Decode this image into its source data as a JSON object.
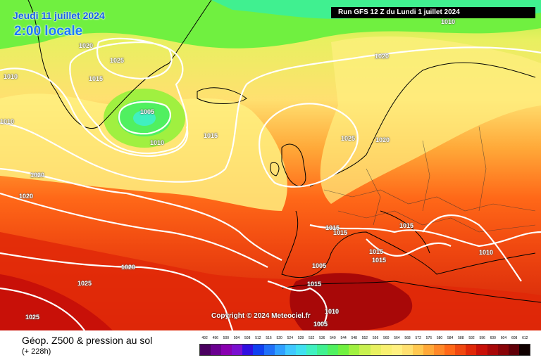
{
  "header": {
    "date": "Jeudi 11 juillet 2024",
    "local_time": "2:00 locale",
    "run": "Run GFS 12 Z du Lundi 1 juillet 2024"
  },
  "map": {
    "copyright": "Copyright © 2024 Meteociel.fr",
    "isobar_labels": [
      {
        "name": "label-1010-top",
        "text": "1010"
      },
      {
        "name": "label-1020-greenland",
        "text": "1020"
      },
      {
        "name": "label-1025-greenland",
        "text": "1025"
      },
      {
        "name": "label-1010-west-a",
        "text": "1010"
      },
      {
        "name": "label-1015-greenland",
        "text": "1015"
      },
      {
        "name": "label-1020-north",
        "text": "1020"
      },
      {
        "name": "label-1005-low",
        "text": "1005"
      },
      {
        "name": "label-1010-west-b",
        "text": "1010"
      },
      {
        "name": "label-1010-low",
        "text": "1010"
      },
      {
        "name": "label-1015-atlantic",
        "text": "1015"
      },
      {
        "name": "label-1025-northsea",
        "text": "1025"
      },
      {
        "name": "label-1020-scandinavia",
        "text": "1020"
      },
      {
        "name": "label-1020-west-a",
        "text": "1020"
      },
      {
        "name": "label-1020-west-b",
        "text": "1020"
      },
      {
        "name": "label-1015-france-a",
        "text": "1015"
      },
      {
        "name": "label-1015-france-b",
        "text": "1015"
      },
      {
        "name": "label-1015-italy-north",
        "text": "1015"
      },
      {
        "name": "label-1015-italy-a",
        "text": "1015"
      },
      {
        "name": "label-1015-italy-b",
        "text": "1015"
      },
      {
        "name": "label-1010-turkey",
        "text": "1010"
      },
      {
        "name": "label-1020-azores",
        "text": "1020"
      },
      {
        "name": "label-1025-southwest",
        "text": "1025"
      },
      {
        "name": "label-1015-spain",
        "text": "1015"
      },
      {
        "name": "label-1005-africa-a",
        "text": "1005"
      },
      {
        "name": "label-1010-africa",
        "text": "1010"
      },
      {
        "name": "label-1005-africa-b",
        "text": "1005"
      },
      {
        "name": "label-1025-bottom",
        "text": "1025"
      }
    ]
  },
  "legend": {
    "title": "Géop. Z500 & pression au sol",
    "lead_time": "(+ 228h)",
    "ticks": [
      "492",
      "496",
      "500",
      "504",
      "508",
      "512",
      "516",
      "520",
      "524",
      "528",
      "532",
      "536",
      "540",
      "544",
      "548",
      "552",
      "556",
      "560",
      "564",
      "568",
      "572",
      "576",
      "580",
      "584",
      "588",
      "592",
      "596",
      "600",
      "604",
      "608",
      "612"
    ],
    "colors": [
      "#4a0060",
      "#6a0090",
      "#8800b0",
      "#7a10d0",
      "#3010e0",
      "#1040f0",
      "#2070f8",
      "#30a0ff",
      "#40c8ff",
      "#40e0f0",
      "#40f0c0",
      "#40f090",
      "#50f060",
      "#70f040",
      "#a0f040",
      "#c8f050",
      "#e8f060",
      "#f8f070",
      "#fff080",
      "#ffe070",
      "#ffc850",
      "#ffa838",
      "#ff8828",
      "#ff6818",
      "#f04810",
      "#e02808",
      "#c81008",
      "#a80808",
      "#880408",
      "#600008",
      "#100000"
    ]
  }
}
